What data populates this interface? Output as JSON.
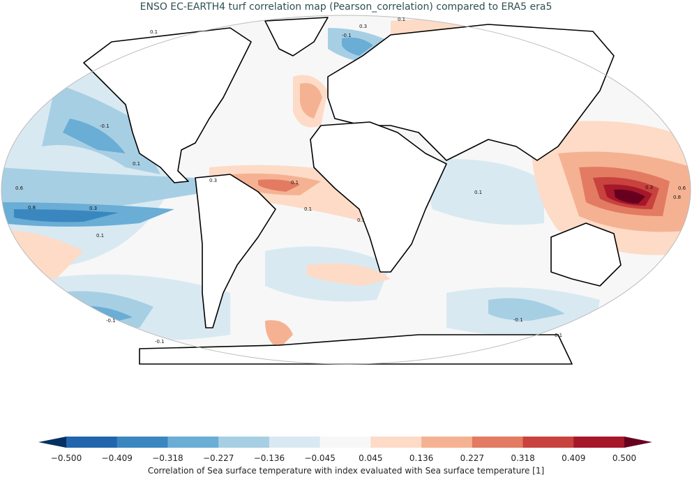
{
  "title": "ENSO EC-EARTH4 turf correlation map (Pearson_correlation) compared to ERA5 era5",
  "map": {
    "projection": "robinson",
    "contour_labels": [
      "0.1",
      "-0.1",
      "0.3",
      "0.6",
      "0.8",
      "0.1",
      "0.3",
      "0.1",
      "-0.1",
      "0.1",
      "0.3",
      "0.1",
      "0.1",
      "0.6",
      "0.8",
      "0.3",
      "0.1",
      "-0.1",
      "-0.1",
      "0.1",
      "0.1",
      "-0.1"
    ]
  },
  "colorbar": {
    "label": "Correlation of Sea surface temperature with index evaluated with Sea surface temperature [1]",
    "ticks": [
      "−0.500",
      "−0.409",
      "−0.318",
      "−0.227",
      "−0.136",
      "−0.045",
      "0.045",
      "0.136",
      "0.227",
      "0.318",
      "0.409",
      "0.500"
    ],
    "colors": [
      "#2166ac",
      "#3a87c0",
      "#6aadd5",
      "#a7cfe4",
      "#d9e9f2",
      "#f7f7f7",
      "#fddbc7",
      "#f5b293",
      "#e27b62",
      "#c8423e",
      "#a51729"
    ],
    "under_color": "#053061",
    "over_color": "#67001f"
  }
}
